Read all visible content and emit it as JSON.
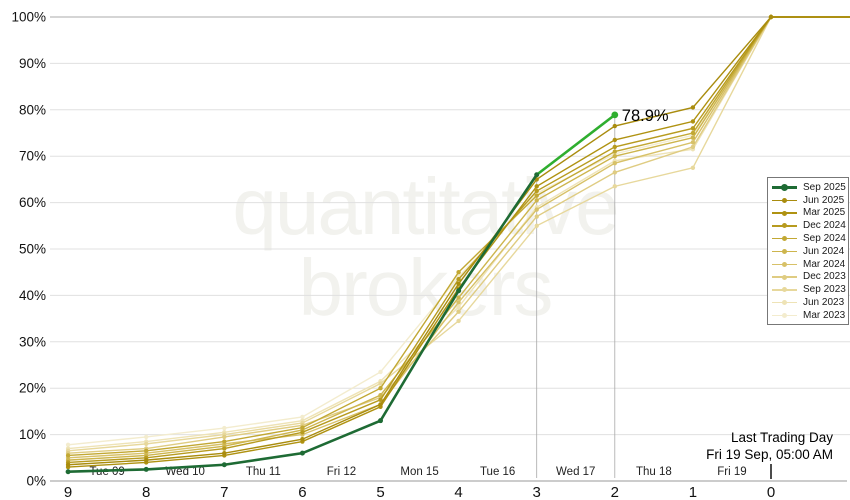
{
  "watermark": {
    "line1": "quantitative",
    "line2": "brokers"
  },
  "footer_note": {
    "line1": "Last Trading Day",
    "line2": "Fri 19 Sep, 05:00 AM"
  },
  "colors": {
    "live_green": "#2fae2f",
    "dark_green": "#1e6b34",
    "gridline": "#e0e0e0",
    "top_gridline": "#ababab",
    "axis_line": "#9a9a9a",
    "drop_line": "#a9a9a9"
  },
  "chart_data": {
    "type": "line",
    "title": "",
    "xlabel": "",
    "ylabel": "",
    "ylim": [
      0,
      100
    ],
    "grid": true,
    "legend_position": "right",
    "y_tick_labels": [
      "0%",
      "10%",
      "20%",
      "30%",
      "40%",
      "50%",
      "60%",
      "70%",
      "80%",
      "90%",
      "100%"
    ],
    "x": [
      9,
      8,
      7,
      6,
      5,
      4,
      3,
      2,
      1,
      0
    ],
    "x_tick_labels": [
      "9",
      "8",
      "7",
      "6",
      "5",
      "4",
      "3",
      "2",
      "1",
      "0"
    ],
    "day_labels": [
      "Tue 09",
      "Wed 10",
      "Thu 11",
      "Fri 12",
      "Mon 15",
      "Tue 16",
      "Wed 17",
      "Thu 18",
      "Fri 19"
    ],
    "annotation": {
      "x": 2,
      "y": 78.9,
      "label": "78.9%"
    },
    "series": [
      {
        "name": "Sep 2025",
        "color": "#1e6b34",
        "live": true,
        "values": [
          2,
          2.5,
          3.5,
          6,
          13,
          41,
          66,
          78.9
        ]
      },
      {
        "name": "Jun 2025",
        "color": "#a98c0e",
        "live": false,
        "values": [
          3.5,
          4.5,
          6,
          9,
          16.5,
          42.5,
          65,
          76.5,
          80.5,
          100
        ]
      },
      {
        "name": "Mar 2025",
        "color": "#af9211",
        "live": false,
        "values": [
          3,
          4,
          5.5,
          8.5,
          16,
          41.5,
          63.5,
          73.5,
          77.5,
          100
        ]
      },
      {
        "name": "Dec 2024",
        "color": "#b79b1f",
        "live": false,
        "values": [
          4,
          5,
          7,
          10.5,
          17.5,
          43.5,
          62.5,
          72,
          76,
          100
        ]
      },
      {
        "name": "Sep 2024",
        "color": "#c2a833",
        "live": false,
        "values": [
          5.5,
          6.5,
          8.5,
          11.5,
          20,
          45,
          61.5,
          71,
          75,
          100
        ]
      },
      {
        "name": "Jun 2024",
        "color": "#cdb54d",
        "live": false,
        "values": [
          4.5,
          5.5,
          7.5,
          11,
          18.5,
          39.5,
          60.5,
          70,
          74,
          100
        ]
      },
      {
        "name": "Mar 2024",
        "color": "#d7c168",
        "live": false,
        "values": [
          5,
          6,
          8,
          10,
          16.5,
          38.5,
          58.5,
          68.5,
          73,
          100
        ]
      },
      {
        "name": "Dec 2023",
        "color": "#dfcc82",
        "live": false,
        "values": [
          6,
          7,
          9.5,
          12,
          18,
          36.5,
          57,
          66.5,
          72,
          100
        ]
      },
      {
        "name": "Sep 2023",
        "color": "#e7d89c",
        "live": false,
        "values": [
          6.5,
          8,
          10,
          12.5,
          21,
          34.5,
          55,
          63.5,
          67.5,
          100
        ]
      },
      {
        "name": "Jun 2023",
        "color": "#eee3b6",
        "live": false,
        "values": [
          7,
          8.5,
          10.5,
          13,
          21.5,
          37.5,
          59,
          69,
          71.5,
          100
        ]
      },
      {
        "name": "Mar 2023",
        "color": "#f3ecce",
        "live": false,
        "values": [
          7.8,
          9.5,
          11.4,
          13.8,
          23.5,
          44,
          62,
          70.5,
          74.5,
          100
        ]
      }
    ]
  }
}
